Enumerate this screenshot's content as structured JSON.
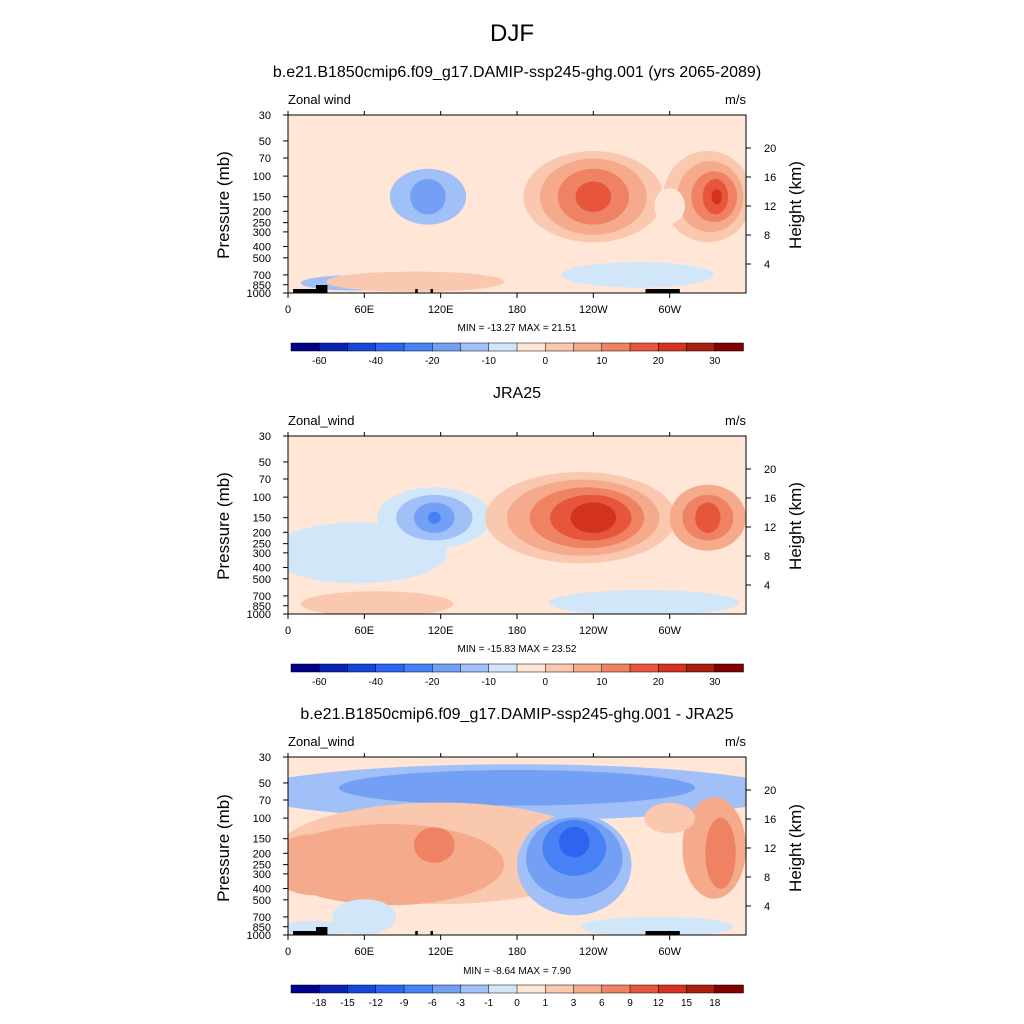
{
  "figure": {
    "title": "DJF"
  },
  "colors": {
    "model_palette": [
      "#00008a",
      "#0a23b4",
      "#1446dc",
      "#2d64f0",
      "#4682f5",
      "#73a0f5",
      "#a0c0f7",
      "#d2e6fa",
      "#ffe6d7",
      "#fac8af",
      "#f5aa8c",
      "#f08264",
      "#e6553c",
      "#d2321e",
      "#aa1e0f",
      "#820000"
    ],
    "diff_palette": [
      "#00008a",
      "#0a23b4",
      "#1446dc",
      "#2d64f0",
      "#4682f5",
      "#73a0f5",
      "#a0c0f7",
      "#d2e6fa",
      "#ffe6d7",
      "#fac8af",
      "#f5aa8c",
      "#f08264",
      "#e6553c",
      "#d2321e",
      "#aa1e0f",
      "#820000"
    ]
  },
  "chart_data": [
    {
      "type": "heatmap",
      "title": "b.e21.B1850cmip6.f09_g17.DAMIP-ssp245-ghg.001 (yrs 2065-2089)",
      "left_label": "Zonal wind",
      "right_label": "m/s",
      "ylabel": "Pressure (mb)",
      "ylabel_right": "Height (km)",
      "x_ticks": [
        "0",
        "60E",
        "120E",
        "180",
        "120W",
        "60W"
      ],
      "y_ticks": [
        "30",
        "50",
        "70",
        "100",
        "150",
        "200",
        "250",
        "300",
        "400",
        "500",
        "700",
        "850",
        "1000"
      ],
      "height_ticks": [
        "20",
        "16",
        "12",
        "8",
        "4"
      ],
      "stats": "MIN = -13.27  MAX =  21.51",
      "colorbar_labels": [
        "-60",
        "-40",
        "-20",
        "-10",
        "0",
        "10",
        "20",
        "30"
      ],
      "features": [
        {
          "lon": 110,
          "p": 150,
          "value": -8
        },
        {
          "lon": 240,
          "p": 150,
          "value": 18
        },
        {
          "lon": 335,
          "p": 150,
          "value": 21.5
        }
      ]
    },
    {
      "type": "heatmap",
      "title": "JRA25",
      "left_label": "Zonal_wind",
      "right_label": "m/s",
      "ylabel": "Pressure (mb)",
      "ylabel_right": "Height (km)",
      "x_ticks": [
        "0",
        "60E",
        "120E",
        "180",
        "120W",
        "60W"
      ],
      "y_ticks": [
        "30",
        "50",
        "70",
        "100",
        "150",
        "200",
        "250",
        "300",
        "400",
        "500",
        "700",
        "850",
        "1000"
      ],
      "height_ticks": [
        "20",
        "16",
        "12",
        "8",
        "4"
      ],
      "stats": "MIN = -15.83  MAX =  23.52",
      "colorbar_labels": [
        "-60",
        "-40",
        "-20",
        "-10",
        "0",
        "10",
        "20",
        "30"
      ],
      "features": [
        {
          "lon": 115,
          "p": 150,
          "value": -12
        },
        {
          "lon": 240,
          "p": 150,
          "value": 23.5
        },
        {
          "lon": 330,
          "p": 150,
          "value": 15
        }
      ]
    },
    {
      "type": "heatmap",
      "title": "b.e21.B1850cmip6.f09_g17.DAMIP-ssp245-ghg.001 - JRA25",
      "left_label": "Zonal_wind",
      "right_label": "m/s",
      "ylabel": "Pressure (mb)",
      "ylabel_right": "Height (km)",
      "x_ticks": [
        "0",
        "60E",
        "120E",
        "180",
        "120W",
        "60W"
      ],
      "y_ticks": [
        "30",
        "50",
        "70",
        "100",
        "150",
        "200",
        "250",
        "300",
        "400",
        "500",
        "700",
        "850",
        "1000"
      ],
      "height_ticks": [
        "20",
        "16",
        "12",
        "8",
        "4"
      ],
      "stats": "MIN = -8.64  MAX =   7.90",
      "colorbar_labels": [
        "-18",
        "-15",
        "-12",
        "-9",
        "-6",
        "-3",
        "-1",
        "0",
        "1",
        "3",
        "6",
        "9",
        "12",
        "15",
        "18"
      ],
      "features": [
        {
          "lon": 225,
          "p": 150,
          "value": -8.6
        },
        {
          "lon": 115,
          "p": 150,
          "value": 6
        },
        {
          "lon": 335,
          "p": 150,
          "value": 7.9
        }
      ]
    }
  ]
}
